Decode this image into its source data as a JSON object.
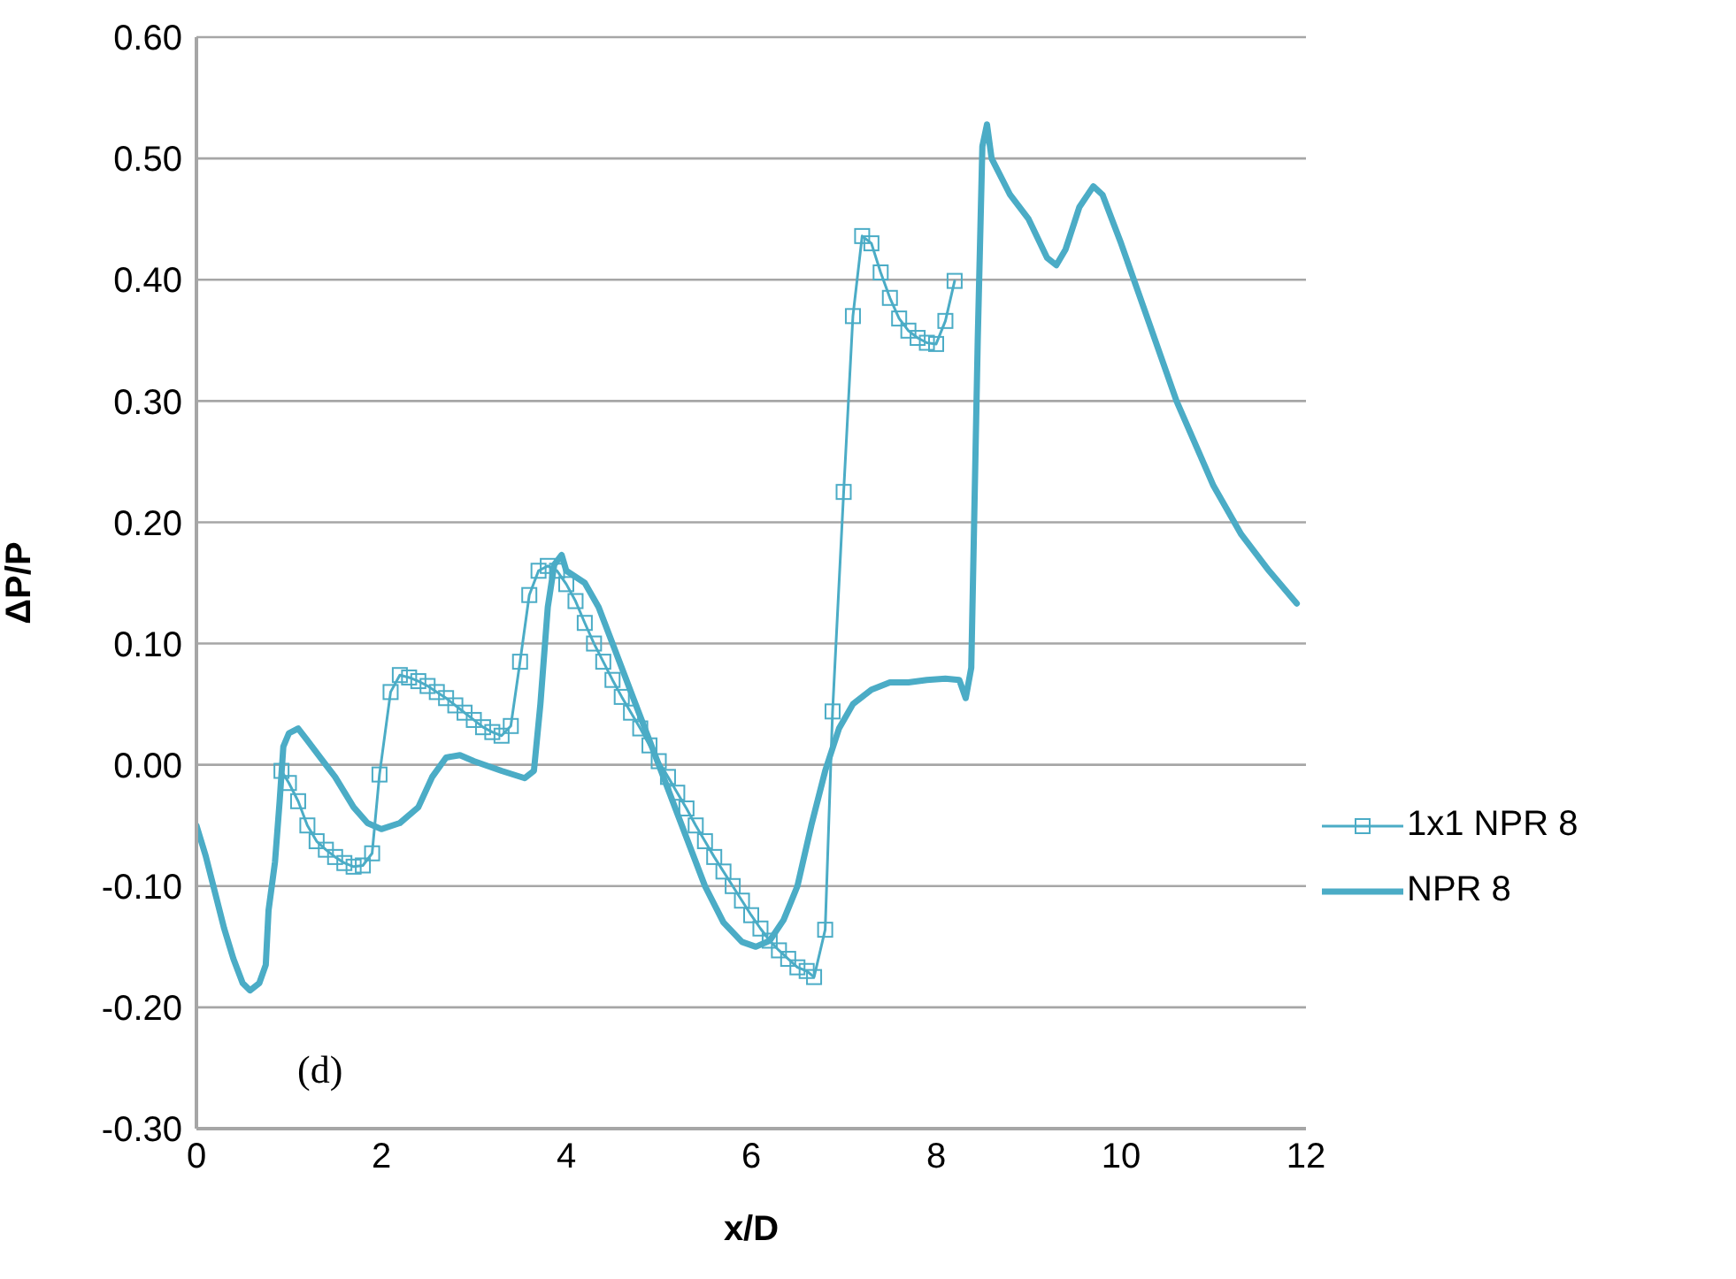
{
  "chart_data": {
    "type": "line",
    "xlabel": "x/D",
    "ylabel": "ΔP/P",
    "xlim": [
      0,
      12
    ],
    "xticks": [
      0,
      2,
      4,
      6,
      8,
      10,
      12
    ],
    "ylim": [
      -0.3,
      0.6
    ],
    "yticks": [
      {
        "value": -0.3,
        "label": "-0.30"
      },
      {
        "value": -0.2,
        "label": "-0.20"
      },
      {
        "value": -0.1,
        "label": "-0.10"
      },
      {
        "value": 0,
        "label": "0.00"
      },
      {
        "value": 0.1,
        "label": "0.10"
      },
      {
        "value": 0.2,
        "label": "0.20"
      },
      {
        "value": 0.3,
        "label": "0.30"
      },
      {
        "value": 0.4,
        "label": "0.40"
      },
      {
        "value": 0.5,
        "label": "0.50"
      },
      {
        "value": 0.6,
        "label": "0.60"
      }
    ],
    "grid": "y",
    "legend": "right",
    "annotations": [
      "(d)"
    ],
    "series": [
      {
        "name": "1x1 NPR 8",
        "color": "#4bacc6",
        "marker": "square",
        "x": [
          0.92,
          1.0,
          1.1,
          1.2,
          1.3,
          1.4,
          1.5,
          1.6,
          1.7,
          1.8,
          1.9,
          1.98,
          2.1,
          2.2,
          2.3,
          2.4,
          2.5,
          2.6,
          2.7,
          2.8,
          2.9,
          3.0,
          3.1,
          3.2,
          3.3,
          3.4,
          3.5,
          3.6,
          3.7,
          3.8,
          3.9,
          4.0,
          4.1,
          4.2,
          4.3,
          4.4,
          4.5,
          4.6,
          4.7,
          4.8,
          4.9,
          5.0,
          5.1,
          5.2,
          5.3,
          5.4,
          5.5,
          5.6,
          5.7,
          5.8,
          5.9,
          6.0,
          6.1,
          6.2,
          6.3,
          6.4,
          6.5,
          6.6,
          6.68,
          6.8,
          6.88,
          7.0,
          7.1,
          7.2,
          7.3,
          7.4,
          7.5,
          7.6,
          7.7,
          7.8,
          7.9,
          8.0,
          8.1,
          8.2
        ],
        "values": [
          -0.005,
          -0.015,
          -0.03,
          -0.05,
          -0.063,
          -0.07,
          -0.076,
          -0.081,
          -0.084,
          -0.083,
          -0.073,
          -0.008,
          0.06,
          0.074,
          0.072,
          0.069,
          0.065,
          0.06,
          0.055,
          0.049,
          0.043,
          0.037,
          0.031,
          0.027,
          0.024,
          0.032,
          0.085,
          0.14,
          0.16,
          0.164,
          0.16,
          0.149,
          0.135,
          0.117,
          0.1,
          0.085,
          0.07,
          0.056,
          0.043,
          0.03,
          0.016,
          0.003,
          -0.01,
          -0.023,
          -0.036,
          -0.05,
          -0.063,
          -0.076,
          -0.088,
          -0.1,
          -0.112,
          -0.124,
          -0.135,
          -0.145,
          -0.153,
          -0.16,
          -0.167,
          -0.17,
          -0.175,
          -0.136,
          0.044,
          0.225,
          0.37,
          0.436,
          0.43,
          0.406,
          0.385,
          0.368,
          0.358,
          0.352,
          0.348,
          0.347,
          0.366,
          0.399
        ]
      },
      {
        "name": "NPR 8",
        "color": "#4bacc6",
        "marker": "none",
        "x": [
          0,
          0.1,
          0.2,
          0.3,
          0.4,
          0.5,
          0.58,
          0.68,
          0.75,
          0.78,
          0.85,
          0.9,
          0.94,
          1.0,
          1.1,
          1.2,
          1.35,
          1.5,
          1.7,
          1.85,
          2.0,
          2.2,
          2.4,
          2.55,
          2.7,
          2.85,
          3.0,
          3.3,
          3.55,
          3.65,
          3.72,
          3.8,
          3.87,
          3.95,
          4.0,
          4.2,
          4.35,
          4.5,
          4.7,
          4.9,
          5.1,
          5.3,
          5.5,
          5.7,
          5.9,
          6.05,
          6.2,
          6.35,
          6.5,
          6.65,
          6.8,
          6.95,
          7.1,
          7.3,
          7.5,
          7.7,
          7.9,
          8.1,
          8.25,
          8.32,
          8.38,
          8.45,
          8.5,
          8.55,
          8.6,
          8.8,
          9.0,
          9.2,
          9.3,
          9.4,
          9.55,
          9.7,
          9.8,
          10.0,
          10.3,
          10.6,
          11.0,
          11.3,
          11.6,
          11.9
        ],
        "values": [
          -0.05,
          -0.075,
          -0.105,
          -0.135,
          -0.16,
          -0.18,
          -0.186,
          -0.18,
          -0.165,
          -0.12,
          -0.08,
          -0.03,
          0.015,
          0.026,
          0.03,
          0.02,
          0.005,
          -0.01,
          -0.035,
          -0.048,
          -0.053,
          -0.048,
          -0.035,
          -0.01,
          0.006,
          0.008,
          0.003,
          -0.005,
          -0.011,
          -0.005,
          0.05,
          0.13,
          0.165,
          0.173,
          0.16,
          0.15,
          0.13,
          0.1,
          0.06,
          0.02,
          -0.02,
          -0.06,
          -0.1,
          -0.13,
          -0.146,
          -0.15,
          -0.145,
          -0.128,
          -0.1,
          -0.05,
          -0.005,
          0.03,
          0.05,
          0.062,
          0.068,
          0.068,
          0.07,
          0.071,
          0.07,
          0.055,
          0.08,
          0.35,
          0.51,
          0.528,
          0.5,
          0.47,
          0.45,
          0.418,
          0.412,
          0.425,
          0.46,
          0.477,
          0.47,
          0.43,
          0.365,
          0.3,
          0.23,
          0.19,
          0.16,
          0.133
        ]
      }
    ]
  }
}
